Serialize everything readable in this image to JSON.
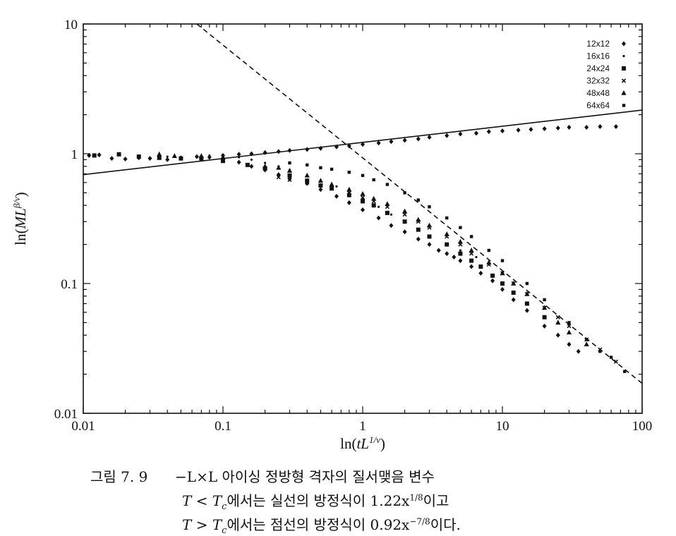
{
  "chart_data": {
    "type": "scatter",
    "x_scale": "log",
    "y_scale": "log",
    "xlim": [
      0.01,
      100
    ],
    "ylim": [
      0.01,
      10
    ],
    "x_ticks": [
      "0.01",
      "0.1",
      "1",
      "10",
      "100"
    ],
    "y_ticks": [
      "0.01",
      "0.1",
      "1",
      "10"
    ],
    "xlabel": "ln(tL^{1/ν})",
    "ylabel": "ln(ML^{β/ν})",
    "legend_position": "top-right",
    "lines": [
      {
        "style": "solid",
        "equation": "1.22x^(1/8)",
        "x": [
          0.01,
          100
        ],
        "y": [
          0.69,
          2.17
        ]
      },
      {
        "style": "dashed",
        "equation": "0.92x^(-7/8)",
        "x": [
          0.065,
          100
        ],
        "y": [
          10.0,
          0.017
        ]
      }
    ],
    "series": [
      {
        "name": "12x12",
        "marker": "diamond",
        "x": [
          0.011,
          0.013,
          0.016,
          0.02,
          0.025,
          0.03,
          0.04,
          0.05,
          0.065,
          0.08,
          0.1,
          0.13,
          0.16,
          0.2,
          0.25,
          0.3,
          0.4,
          0.5,
          0.65,
          0.8,
          1.0,
          1.3,
          1.6,
          2.0,
          2.5,
          3.0,
          4.0,
          5.0,
          6.5,
          8.0,
          10,
          13,
          16,
          20,
          25,
          30,
          40,
          50,
          65,
          0.1,
          0.13,
          0.16,
          0.2,
          0.25,
          0.3,
          0.4,
          0.5,
          0.65,
          0.8,
          1.0,
          1.3,
          1.6,
          2.0,
          2.5,
          3.0,
          3.5,
          4.0,
          4.5,
          5.0,
          6.0,
          7.0,
          8.5,
          10,
          12,
          15,
          20,
          25,
          30,
          35
        ],
        "y": [
          0.97,
          0.98,
          0.92,
          0.91,
          0.93,
          0.92,
          0.9,
          0.93,
          0.95,
          0.94,
          0.97,
          0.99,
          1.0,
          1.02,
          1.04,
          1.06,
          1.08,
          1.1,
          1.13,
          1.15,
          1.18,
          1.21,
          1.24,
          1.27,
          1.3,
          1.34,
          1.38,
          1.42,
          1.44,
          1.48,
          1.5,
          1.52,
          1.54,
          1.56,
          1.58,
          1.6,
          1.6,
          1.62,
          1.62,
          0.92,
          0.86,
          0.8,
          0.75,
          0.69,
          0.64,
          0.59,
          0.53,
          0.47,
          0.42,
          0.37,
          0.32,
          0.28,
          0.25,
          0.22,
          0.2,
          0.18,
          0.17,
          0.16,
          0.15,
          0.135,
          0.12,
          0.105,
          0.09,
          0.075,
          0.062,
          0.047,
          0.04,
          0.034,
          0.03
        ]
      },
      {
        "name": "16x16",
        "marker": "dot",
        "x": [
          0.04,
          0.05,
          0.065,
          0.08,
          0.1,
          0.13,
          0.16,
          0.2,
          0.25,
          0.3,
          0.4,
          0.5,
          0.65,
          0.8,
          1.0,
          1.3,
          1.6,
          2.0,
          2.5,
          3.0,
          4.0,
          5.0,
          6.5
        ],
        "y": [
          0.95,
          0.93,
          0.96,
          0.97,
          0.96,
          0.94,
          0.9,
          0.85,
          0.8,
          0.75,
          0.68,
          0.62,
          0.56,
          0.5,
          0.45,
          0.39,
          0.34,
          0.3,
          0.26,
          0.23,
          0.2,
          0.18,
          0.16
        ]
      },
      {
        "name": "24x24",
        "marker": "square",
        "x": [
          0.012,
          0.018,
          0.025,
          0.035,
          0.05,
          0.07,
          0.1,
          0.15,
          0.2,
          0.3,
          0.4,
          0.5,
          0.6,
          0.8,
          1.0,
          1.2,
          1.5,
          2.0,
          2.5,
          3.0,
          4.0,
          5.0,
          6.0,
          7.0,
          8.5,
          10,
          12,
          15,
          20
        ],
        "y": [
          0.97,
          0.99,
          0.95,
          0.93,
          0.92,
          0.92,
          0.88,
          0.82,
          0.77,
          0.68,
          0.62,
          0.57,
          0.54,
          0.48,
          0.43,
          0.4,
          0.35,
          0.3,
          0.26,
          0.23,
          0.2,
          0.17,
          0.15,
          0.135,
          0.115,
          0.1,
          0.085,
          0.07,
          0.055
        ]
      },
      {
        "name": "32x32",
        "marker": "x",
        "x": [
          0.25,
          0.3,
          0.4,
          0.5,
          0.6,
          0.8,
          1.0,
          1.2,
          1.5,
          2.0,
          2.5,
          3.0,
          4.0,
          5.0,
          6.0,
          8.0,
          10,
          12,
          15,
          20,
          25,
          30,
          40,
          50,
          65
        ],
        "y": [
          0.66,
          0.63,
          0.6,
          0.57,
          0.54,
          0.5,
          0.46,
          0.43,
          0.39,
          0.34,
          0.3,
          0.27,
          0.23,
          0.2,
          0.17,
          0.14,
          0.12,
          0.1,
          0.083,
          0.065,
          0.055,
          0.047,
          0.037,
          0.031,
          0.025
        ]
      },
      {
        "name": "48x48",
        "marker": "triangle",
        "x": [
          0.035,
          0.045,
          0.07,
          0.1,
          0.2,
          0.25,
          0.3,
          0.4,
          0.5,
          0.6,
          0.8,
          1.0,
          1.2,
          1.5,
          2.0,
          2.5,
          3.0,
          4.0,
          5.0,
          6.0,
          8.0,
          10,
          12,
          15,
          20,
          25,
          30,
          40
        ],
        "y": [
          0.99,
          0.96,
          0.96,
          0.94,
          0.8,
          0.78,
          0.74,
          0.68,
          0.62,
          0.58,
          0.53,
          0.49,
          0.45,
          0.41,
          0.36,
          0.31,
          0.28,
          0.24,
          0.21,
          0.18,
          0.145,
          0.12,
          0.1,
          0.083,
          0.065,
          0.05,
          0.042,
          0.034
        ]
      },
      {
        "name": "64x64",
        "marker": "small-square",
        "x": [
          0.3,
          0.4,
          0.5,
          0.6,
          0.8,
          1.0,
          1.2,
          1.5,
          2.0,
          2.5,
          3.0,
          4.0,
          5.0,
          6.0,
          8.0,
          10,
          15,
          20,
          30,
          40,
          50,
          60,
          75
        ],
        "y": [
          0.85,
          0.82,
          0.78,
          0.76,
          0.72,
          0.68,
          0.63,
          0.58,
          0.5,
          0.44,
          0.39,
          0.32,
          0.27,
          0.23,
          0.18,
          0.15,
          0.1,
          0.075,
          0.05,
          0.037,
          0.03,
          0.027,
          0.021
        ]
      }
    ]
  },
  "caption": {
    "label": "그림 7. 9",
    "line1": "−L×L 아이싱 정방형 격자의 질서맺음 변수",
    "line2_pre": "T < T",
    "line2_sub": "c",
    "line2_mid": "에서는 실선의 방정식이 1.22x",
    "line2_sup": "1/8",
    "line2_post": "이고",
    "line3_pre": "T > T",
    "line3_sub": "c",
    "line3_mid": "에서는 점선의 방정식이 0.92x",
    "line3_sup": "−7/8",
    "line3_post": "이다."
  }
}
